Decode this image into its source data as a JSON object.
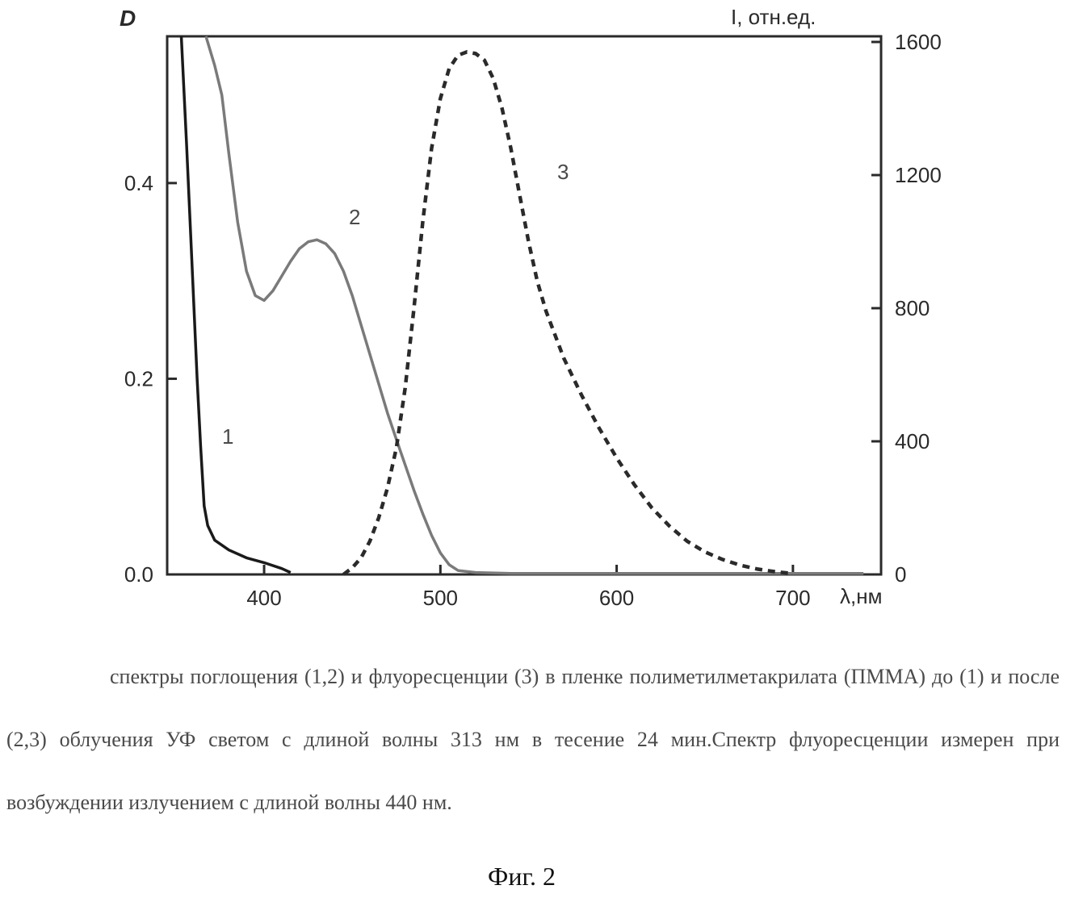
{
  "chart_data": {
    "type": "line",
    "xlabel": "λ,нм",
    "ylabel_left": "D",
    "ylabel_right": "I, отн.ед.",
    "xlim": [
      345,
      750
    ],
    "ylim_left": [
      0,
      0.55
    ],
    "ylim_right": [
      0,
      1600
    ],
    "x_ticks": [
      400,
      500,
      600,
      700
    ],
    "y_left_ticks": [
      "0.0",
      "0.2",
      "0.4"
    ],
    "y_right_ticks": [
      "0",
      "400",
      "800",
      "1200",
      "1600"
    ],
    "grid": false,
    "series": [
      {
        "name": "1",
        "axis": "left",
        "style": "solid",
        "color": "#1a1a1a",
        "x": [
          353,
          356,
          359,
          362,
          364,
          366,
          368,
          372,
          380,
          390,
          400,
          410,
          415
        ],
        "y": [
          0.55,
          0.44,
          0.32,
          0.2,
          0.13,
          0.07,
          0.05,
          0.035,
          0.025,
          0.017,
          0.012,
          0.006,
          0.002
        ]
      },
      {
        "name": "2",
        "axis": "left",
        "style": "solid",
        "color": "#7a7a7a",
        "x": [
          367,
          372,
          376,
          380,
          385,
          390,
          395,
          400,
          405,
          410,
          415,
          420,
          425,
          430,
          435,
          440,
          445,
          450,
          455,
          460,
          465,
          470,
          475,
          480,
          485,
          490,
          495,
          500,
          505,
          510,
          520,
          540,
          570,
          600,
          650,
          700,
          740
        ],
        "y": [
          0.55,
          0.52,
          0.49,
          0.43,
          0.36,
          0.31,
          0.285,
          0.28,
          0.29,
          0.305,
          0.32,
          0.333,
          0.34,
          0.342,
          0.338,
          0.328,
          0.31,
          0.285,
          0.255,
          0.225,
          0.195,
          0.165,
          0.138,
          0.112,
          0.086,
          0.062,
          0.04,
          0.022,
          0.01,
          0.004,
          0.002,
          0.001,
          0.001,
          0.001,
          0.001,
          0.001,
          0.001
        ]
      },
      {
        "name": "3",
        "axis": "right",
        "style": "dashed",
        "color": "#2a2a2a",
        "x": [
          445,
          450,
          455,
          460,
          465,
          470,
          475,
          480,
          485,
          490,
          495,
          500,
          505,
          510,
          515,
          520,
          525,
          530,
          535,
          540,
          545,
          550,
          555,
          560,
          570,
          580,
          590,
          600,
          610,
          620,
          630,
          640,
          650,
          660,
          670,
          680,
          690,
          700
        ],
        "y": [
          0,
          20,
          50,
          100,
          170,
          260,
          380,
          560,
          800,
          1060,
          1280,
          1430,
          1520,
          1560,
          1570,
          1565,
          1545,
          1490,
          1400,
          1280,
          1140,
          1000,
          880,
          790,
          650,
          540,
          440,
          350,
          270,
          200,
          145,
          100,
          68,
          45,
          28,
          16,
          8,
          3
        ]
      }
    ]
  },
  "caption": {
    "text": "спектры поглощения (1,2) и флуоресценции (3) в пленке полиметилметакрилата (ПММА) до (1) и после (2,3) облучения УФ светом с длиной волны 313 нм в тесение 24 мин.Спектр флуоресценции измерен при возбуждении излучением с длиной волны 440 нм.",
    "figure_label": "Фиг. 2"
  }
}
